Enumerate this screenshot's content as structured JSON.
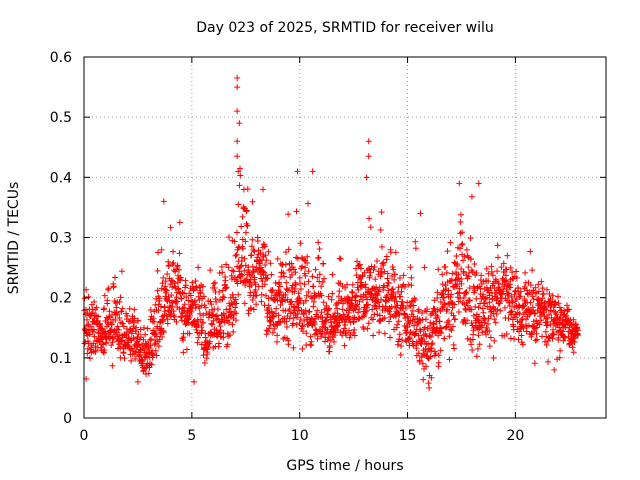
{
  "chart_data": {
    "type": "scatter",
    "title": "Day 023 of 2025, SRMTID for receiver wilu",
    "xlabel": "GPS time / hours",
    "ylabel": "SRMTID / TECUs",
    "xlim": [
      0,
      24.2
    ],
    "ylim": [
      0,
      0.6
    ],
    "grid": true,
    "marker": "+",
    "x_ticks": [
      0,
      5,
      10,
      15,
      20
    ],
    "y_ticks": [
      0,
      0.1,
      0.2,
      0.3,
      0.4,
      0.5,
      0.6
    ],
    "x_tick_labels": [
      "0",
      "5",
      "10",
      "15",
      "20"
    ],
    "y_tick_labels": [
      "0",
      "0.1",
      "0.2",
      "0.3",
      "0.4",
      "0.5",
      "0.6"
    ],
    "colors": {
      "points": "#ff0000",
      "grid": "#a0a0a0",
      "axes": "#000000"
    },
    "series": [
      {
        "name": "SRMTID",
        "sampling": "continuous, ~1 point per 30 s, 0 to 22.9 h",
        "x_range": [
          0,
          22.9
        ],
        "envelope": {
          "hours": [
            0,
            1,
            2,
            3,
            3.5,
            4,
            5,
            6,
            6.5,
            7,
            7.2,
            8,
            8.5,
            9,
            10,
            10.5,
            11,
            12,
            13,
            13.3,
            14,
            15,
            16,
            17,
            17.5,
            18,
            19,
            20,
            21,
            22,
            22.9
          ],
          "low": [
            0.07,
            0.09,
            0.08,
            0.06,
            0.09,
            0.12,
            0.1,
            0.07,
            0.1,
            0.13,
            0.18,
            0.15,
            0.1,
            0.1,
            0.12,
            0.1,
            0.11,
            0.1,
            0.12,
            0.14,
            0.12,
            0.09,
            0.05,
            0.1,
            0.12,
            0.08,
            0.1,
            0.1,
            0.09,
            0.08,
            0.11
          ],
          "center": [
            0.14,
            0.15,
            0.14,
            0.1,
            0.15,
            0.2,
            0.18,
            0.14,
            0.17,
            0.22,
            0.26,
            0.25,
            0.2,
            0.17,
            0.2,
            0.18,
            0.17,
            0.16,
            0.2,
            0.22,
            0.21,
            0.15,
            0.12,
            0.2,
            0.24,
            0.17,
            0.2,
            0.19,
            0.19,
            0.17,
            0.14
          ],
          "high": [
            0.23,
            0.28,
            0.25,
            0.18,
            0.3,
            0.36,
            0.3,
            0.27,
            0.33,
            0.57,
            0.57,
            0.38,
            0.36,
            0.28,
            0.41,
            0.41,
            0.3,
            0.3,
            0.3,
            0.46,
            0.35,
            0.32,
            0.25,
            0.3,
            0.39,
            0.39,
            0.32,
            0.3,
            0.28,
            0.22,
            0.17
          ]
        },
        "notable_points": [
          {
            "x": 7.1,
            "y": 0.565
          },
          {
            "x": 7.1,
            "y": 0.55
          },
          {
            "x": 7.1,
            "y": 0.51
          },
          {
            "x": 7.2,
            "y": 0.49
          },
          {
            "x": 7.1,
            "y": 0.46
          },
          {
            "x": 7.1,
            "y": 0.435
          },
          {
            "x": 7.15,
            "y": 0.41
          },
          {
            "x": 9.9,
            "y": 0.41
          },
          {
            "x": 10.6,
            "y": 0.41
          },
          {
            "x": 13.2,
            "y": 0.46
          },
          {
            "x": 13.2,
            "y": 0.435
          },
          {
            "x": 13.1,
            "y": 0.4
          },
          {
            "x": 17.4,
            "y": 0.39
          },
          {
            "x": 18.3,
            "y": 0.39
          },
          {
            "x": 3.7,
            "y": 0.36
          },
          {
            "x": 8.3,
            "y": 0.38
          },
          {
            "x": 15.6,
            "y": 0.34
          },
          {
            "x": 16.0,
            "y": 0.05
          },
          {
            "x": 5.1,
            "y": 0.06
          },
          {
            "x": 0.1,
            "y": 0.065
          },
          {
            "x": 2.5,
            "y": 0.06
          },
          {
            "x": 21.8,
            "y": 0.08
          }
        ]
      }
    ]
  }
}
